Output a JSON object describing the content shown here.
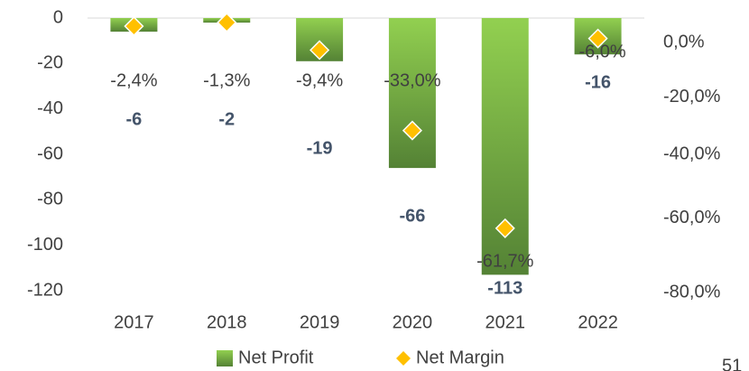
{
  "chart_data": {
    "type": "bar_line",
    "categories": [
      "2017",
      "2018",
      "2019",
      "2020",
      "2021",
      "2022"
    ],
    "series": [
      {
        "name": "Net Profit",
        "type": "bar",
        "color": "#70ad47",
        "values": [
          -6,
          -2,
          -19,
          -66,
          -113,
          -16
        ]
      },
      {
        "name": "Net Margin",
        "type": "marker",
        "axis": "y2",
        "color": "#ffc000",
        "values": [
          -2.4,
          -1.3,
          -9.4,
          -33.0,
          -61.7,
          -6.0
        ],
        "value_labels": [
          "-2,4%",
          "-1,3%",
          "-9,4%",
          "-33,0%",
          "-61,7%",
          "-6,0%"
        ]
      }
    ],
    "ylim": [
      -120,
      0
    ],
    "yticks": [
      0,
      -20,
      -40,
      -60,
      -80,
      -100,
      -120
    ],
    "y2lim": [
      -80,
      0
    ],
    "y2ticks": [
      {
        "value": 0,
        "label": "0,0%"
      },
      {
        "value": -20,
        "label": "-20,0%"
      },
      {
        "value": -40,
        "label": "-40,0%"
      },
      {
        "value": -60,
        "label": "-60,0%"
      },
      {
        "value": -80,
        "label": "-80,0%"
      }
    ],
    "grid": false,
    "legend": "bottom",
    "annotations": [
      "51"
    ]
  }
}
